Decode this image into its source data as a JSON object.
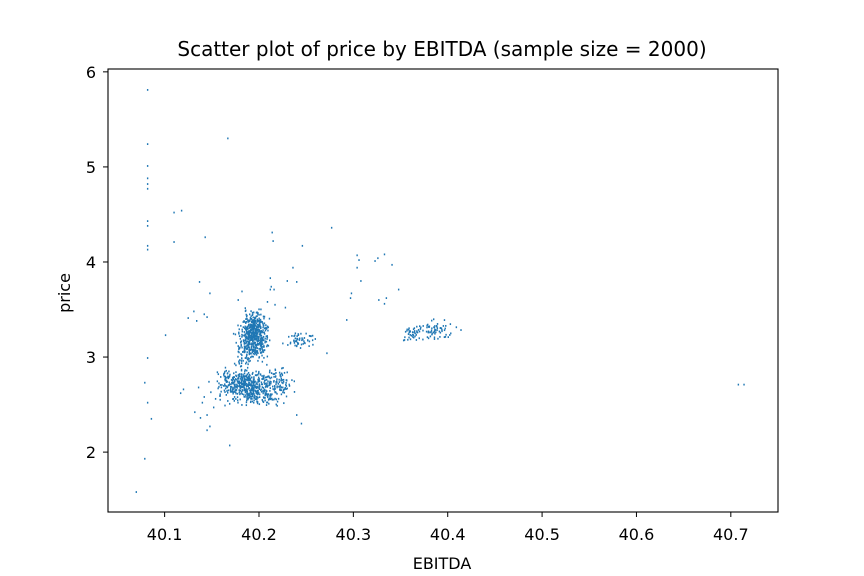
{
  "chart_data": {
    "type": "scatter",
    "title": "Scatter plot of price by EBITDA (sample size = 2000)",
    "xlabel": "EBITDA",
    "ylabel": "price",
    "xlim": [
      40.04,
      40.75
    ],
    "ylim": [
      1.37,
      6.03
    ],
    "xticks": [
      40.1,
      40.2,
      40.3,
      40.4,
      40.5,
      40.6,
      40.7
    ],
    "xtick_labels": [
      "40.1",
      "40.2",
      "40.3",
      "40.4",
      "40.5",
      "40.6",
      "40.7"
    ],
    "yticks": [
      2,
      3,
      4,
      5,
      6
    ],
    "ytick_labels": [
      "2",
      "3",
      "4",
      "5",
      "6"
    ],
    "grid": false,
    "marker_color": "#1f77b4",
    "points": [
      [
        40.082,
        5.81
      ],
      [
        40.082,
        5.24
      ],
      [
        40.082,
        5.01
      ],
      [
        40.082,
        4.88
      ],
      [
        40.082,
        4.82
      ],
      [
        40.082,
        4.77
      ],
      [
        40.082,
        4.43
      ],
      [
        40.082,
        4.38
      ],
      [
        40.082,
        4.17
      ],
      [
        40.082,
        4.13
      ],
      [
        40.082,
        2.99
      ],
      [
        40.082,
        2.52
      ],
      [
        40.07,
        1.58
      ],
      [
        40.079,
        1.93
      ],
      [
        40.079,
        2.73
      ],
      [
        40.086,
        2.35
      ],
      [
        40.11,
        4.52
      ],
      [
        40.11,
        4.21
      ],
      [
        40.118,
        4.54
      ],
      [
        40.101,
        3.23
      ],
      [
        40.117,
        2.62
      ],
      [
        40.12,
        2.66
      ],
      [
        40.125,
        3.41
      ],
      [
        40.131,
        3.48
      ],
      [
        40.134,
        3.38
      ],
      [
        40.137,
        3.79
      ],
      [
        40.143,
        4.26
      ],
      [
        40.145,
        3.42
      ],
      [
        40.148,
        3.67
      ],
      [
        40.142,
        3.45
      ],
      [
        40.136,
        2.68
      ],
      [
        40.14,
        2.52
      ],
      [
        40.132,
        2.42
      ],
      [
        40.145,
        2.39
      ],
      [
        40.138,
        2.36
      ],
      [
        40.148,
        2.27
      ],
      [
        40.145,
        2.23
      ],
      [
        40.154,
        2.56
      ],
      [
        40.149,
        2.63
      ],
      [
        40.147,
        2.74
      ],
      [
        40.142,
        2.58
      ],
      [
        40.152,
        2.47
      ],
      [
        40.167,
        5.3
      ],
      [
        40.169,
        2.07
      ],
      [
        40.164,
        2.49
      ],
      [
        40.173,
        2.63
      ],
      [
        40.178,
        3.6
      ],
      [
        40.182,
        3.69
      ],
      [
        40.186,
        3.49
      ],
      [
        40.209,
        3.58
      ],
      [
        40.212,
        3.71
      ],
      [
        40.216,
        3.71
      ],
      [
        40.213,
        3.74
      ],
      [
        40.212,
        3.83
      ],
      [
        40.217,
        3.55
      ],
      [
        40.214,
        4.31
      ],
      [
        40.215,
        4.22
      ],
      [
        40.228,
        3.52
      ],
      [
        40.23,
        3.8
      ],
      [
        40.236,
        3.94
      ],
      [
        40.24,
        3.79
      ],
      [
        40.246,
        4.17
      ],
      [
        40.24,
        2.39
      ],
      [
        40.245,
        2.3
      ],
      [
        40.277,
        4.36
      ],
      [
        40.272,
        3.04
      ],
      [
        40.293,
        3.39
      ],
      [
        40.298,
        3.67
      ],
      [
        40.297,
        3.62
      ],
      [
        40.304,
        3.94
      ],
      [
        40.304,
        4.07
      ],
      [
        40.306,
        4.02
      ],
      [
        40.308,
        3.8
      ],
      [
        40.323,
        4.01
      ],
      [
        40.326,
        4.04
      ],
      [
        40.333,
        4.08
      ],
      [
        40.341,
        3.97
      ],
      [
        40.327,
        3.6
      ],
      [
        40.333,
        3.56
      ],
      [
        40.335,
        3.62
      ],
      [
        40.348,
        3.71
      ],
      [
        40.708,
        2.71
      ],
      [
        40.714,
        2.71
      ]
    ],
    "clusters": [
      {
        "x": 40.195,
        "y": 3.23,
        "sx": 0.0065,
        "sy": 0.11,
        "n": 520
      },
      {
        "x": 40.18,
        "y": 2.73,
        "sx": 0.012,
        "sy": 0.07,
        "n": 240
      },
      {
        "x": 40.198,
        "y": 2.66,
        "sx": 0.014,
        "sy": 0.08,
        "n": 330
      },
      {
        "x": 40.222,
        "y": 2.76,
        "sx": 0.007,
        "sy": 0.08,
        "n": 60
      },
      {
        "x": 40.183,
        "y": 3.05,
        "sx": 0.005,
        "sy": 0.12,
        "n": 60
      },
      {
        "x": 40.245,
        "y": 3.18,
        "sx": 0.009,
        "sy": 0.04,
        "n": 55
      },
      {
        "x": 40.36,
        "y": 3.25,
        "sx": 0.004,
        "sy": 0.04,
        "n": 30
      },
      {
        "x": 40.385,
        "y": 3.28,
        "sx": 0.011,
        "sy": 0.05,
        "n": 75
      }
    ]
  }
}
